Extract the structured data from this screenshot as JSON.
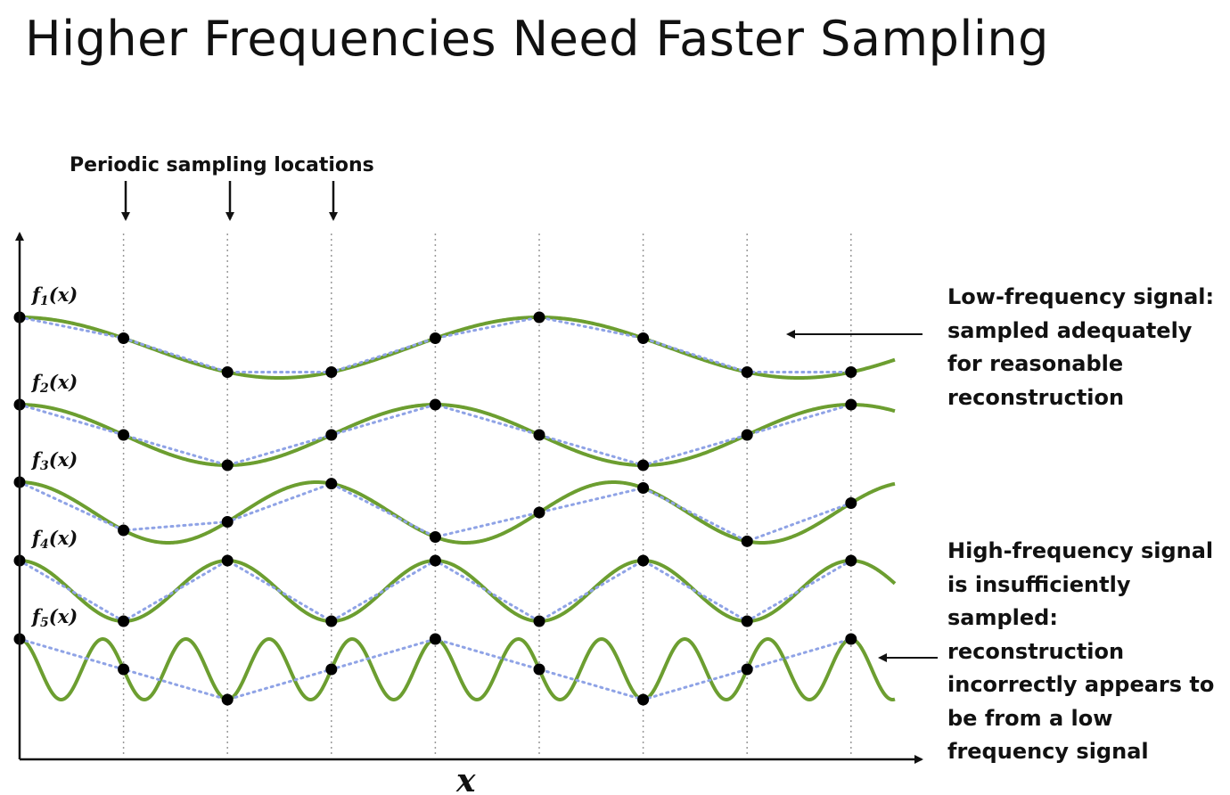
{
  "title": "Higher Frequencies Need Faster Sampling",
  "sampling_label": "Periodic sampling locations",
  "x_axis_label": "x",
  "functions": [
    {
      "id": "f1",
      "label_prefix": "f",
      "label_sub": "1",
      "label_suffix": "(x)",
      "cycles_per_sample": 0.2
    },
    {
      "id": "f2",
      "label_prefix": "f",
      "label_sub": "2",
      "label_suffix": "(x)",
      "cycles_per_sample": 0.25
    },
    {
      "id": "f3",
      "label_prefix": "f",
      "label_sub": "3",
      "label_suffix": "(x)",
      "cycles_per_sample": 0.35
    },
    {
      "id": "f4",
      "label_prefix": "f",
      "label_sub": "4",
      "label_suffix": "(x)",
      "cycles_per_sample": 0.5
    },
    {
      "id": "f5",
      "label_prefix": "f",
      "label_sub": "5",
      "label_suffix": "(x)",
      "cycles_per_sample": 1.25
    }
  ],
  "sample_count": 9,
  "low_freq_note": [
    "Low-frequency signal:",
    "sampled adequately",
    "for reasonable",
    "reconstruction"
  ],
  "high_freq_note": [
    "High-frequency signal",
    "is insufficiently",
    "sampled:",
    "reconstruction",
    "incorrectly appears to",
    "be from a low",
    "frequency signal"
  ],
  "colors": {
    "signal": "#6c9e30",
    "reconstruction": "#8fa3e6",
    "sample_dot": "#000000",
    "axis": "#111111",
    "sample_line": "#999999"
  }
}
